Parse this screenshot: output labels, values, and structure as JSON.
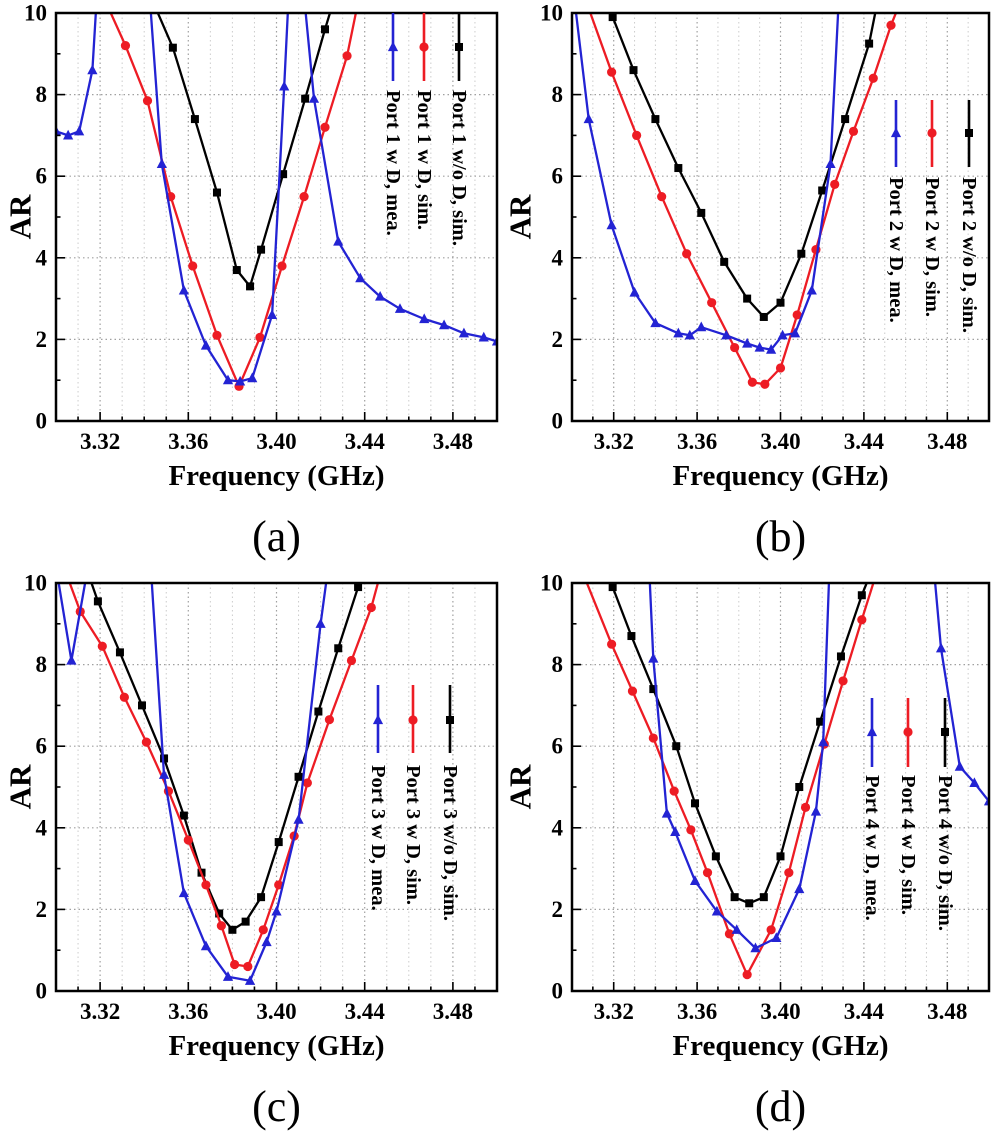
{
  "figure": {
    "background": "#ffffff",
    "colors": {
      "black": "#000000",
      "red": "#ed1c24",
      "blue": "#2323d3",
      "grid_major": "#a0a0a0",
      "grid_minor": "#cccccc",
      "axis": "#000000"
    }
  },
  "chart_data": [
    {
      "subplot_label": "(a)",
      "type": "line",
      "xlabel": "Frequency (GHz)",
      "ylabel": "AR",
      "xlim": [
        3.3,
        3.5
      ],
      "ylim": [
        0,
        10
      ],
      "x_tick_values": [
        3.32,
        3.36,
        3.4,
        3.44,
        3.48
      ],
      "x_tick_labels": [
        "3.32",
        "3.36",
        "3.40",
        "3.44",
        "3.48"
      ],
      "x_minor_step": 0.01,
      "y_tick_values": [
        0,
        2,
        4,
        6,
        8,
        10
      ],
      "y_tick_labels": [
        "0",
        "2",
        "4",
        "6",
        "8",
        "10"
      ],
      "y_minor_step": 1,
      "grid": "dotted",
      "legend_position": "top-right",
      "series": [
        {
          "name": "Port 1 w/o D, sim.",
          "color": "#000000",
          "marker": "square",
          "x": [
            3.343,
            3.353,
            3.363,
            3.373,
            3.382,
            3.388,
            3.393,
            3.403,
            3.413,
            3.422,
            3.4265
          ],
          "y": [
            10.4,
            9.15,
            7.4,
            5.6,
            3.7,
            3.3,
            4.2,
            6.05,
            7.9,
            9.6,
            10.4
          ]
        },
        {
          "name": "Port 1 w D, sim.",
          "color": "#ed1c24",
          "marker": "circle",
          "x": [
            3.3215,
            3.3315,
            3.3415,
            3.352,
            3.362,
            3.373,
            3.383,
            3.3925,
            3.4025,
            3.4125,
            3.422,
            3.432,
            3.4375
          ],
          "y": [
            10.4,
            9.2,
            7.85,
            5.5,
            3.8,
            2.1,
            0.85,
            2.05,
            3.8,
            5.5,
            7.2,
            8.95,
            10.4
          ]
        },
        {
          "name": "Port 1 w D, mea.",
          "color": "#2323d3",
          "marker": "triangle",
          "x": [
            3.3,
            3.3055,
            3.3105,
            3.3165,
            3.3185,
            3.3425,
            3.348,
            3.358,
            3.368,
            3.378,
            3.3835,
            3.389,
            3.398,
            3.4035,
            3.4055,
            3.4125,
            3.417,
            3.428,
            3.438,
            3.447,
            3.456,
            3.467,
            3.476,
            3.485,
            3.494,
            3.5
          ],
          "y": [
            7.1,
            7.0,
            7.1,
            8.6,
            10.4,
            10.4,
            6.3,
            3.2,
            1.85,
            1.0,
            0.97,
            1.05,
            2.6,
            8.2,
            10.4,
            10.4,
            7.9,
            4.4,
            3.5,
            3.05,
            2.75,
            2.5,
            2.35,
            2.15,
            2.05,
            1.95
          ]
        }
      ]
    },
    {
      "subplot_label": "(b)",
      "type": "line",
      "xlabel": "Frequency (GHz)",
      "ylabel": "AR",
      "xlim": [
        3.3,
        3.5
      ],
      "ylim": [
        0,
        10
      ],
      "x_tick_values": [
        3.32,
        3.36,
        3.4,
        3.44,
        3.48
      ],
      "x_tick_labels": [
        "3.32",
        "3.36",
        "3.40",
        "3.44",
        "3.48"
      ],
      "x_minor_step": 0.01,
      "y_tick_values": [
        0,
        2,
        4,
        6,
        8,
        10
      ],
      "y_tick_labels": [
        "0",
        "2",
        "4",
        "6",
        "8",
        "10"
      ],
      "y_minor_step": 1,
      "grid": "dotted",
      "legend_position": "middle-right",
      "series": [
        {
          "name": "Port 2 w/o D, sim.",
          "color": "#000000",
          "marker": "square",
          "x": [
            3.3165,
            3.3195,
            3.3295,
            3.34,
            3.351,
            3.362,
            3.373,
            3.384,
            3.392,
            3.4,
            3.41,
            3.42,
            3.431,
            3.4425,
            3.447
          ],
          "y": [
            10.4,
            9.9,
            8.6,
            7.4,
            6.2,
            5.1,
            3.9,
            3.0,
            2.55,
            2.9,
            4.1,
            5.65,
            7.4,
            9.25,
            10.4
          ]
        },
        {
          "name": "Port 2 w D, sim.",
          "color": "#ed1c24",
          "marker": "circle",
          "x": [
            3.306,
            3.319,
            3.331,
            3.343,
            3.355,
            3.367,
            3.378,
            3.3865,
            3.3925,
            3.4,
            3.408,
            3.417,
            3.426,
            3.435,
            3.4445,
            3.453,
            3.4585
          ],
          "y": [
            10.4,
            8.55,
            7.0,
            5.5,
            4.1,
            2.9,
            1.8,
            0.95,
            0.9,
            1.3,
            2.6,
            4.2,
            5.8,
            7.1,
            8.4,
            9.7,
            10.4
          ]
        },
        {
          "name": "Port 2 w D, mea.",
          "color": "#2323d3",
          "marker": "triangle",
          "x": [
            3.301,
            3.308,
            3.319,
            3.33,
            3.34,
            3.351,
            3.3565,
            3.362,
            3.374,
            3.384,
            3.39,
            3.3955,
            3.401,
            3.407,
            3.415,
            3.424,
            3.428
          ],
          "y": [
            10.4,
            7.4,
            4.8,
            3.15,
            2.4,
            2.15,
            2.1,
            2.3,
            2.1,
            1.9,
            1.8,
            1.75,
            2.1,
            2.15,
            3.2,
            6.3,
            10.4
          ]
        }
      ]
    },
    {
      "subplot_label": "(c)",
      "type": "line",
      "xlabel": "Frequency (GHz)",
      "ylabel": "AR",
      "xlim": [
        3.3,
        3.5
      ],
      "ylim": [
        0,
        10
      ],
      "x_tick_values": [
        3.32,
        3.36,
        3.4,
        3.44,
        3.48
      ],
      "x_tick_labels": [
        "3.32",
        "3.36",
        "3.40",
        "3.44",
        "3.48"
      ],
      "x_minor_step": 0.01,
      "y_tick_values": [
        0,
        2,
        4,
        6,
        8,
        10
      ],
      "y_tick_labels": [
        "0",
        "2",
        "4",
        "6",
        "8",
        "10"
      ],
      "y_minor_step": 1,
      "grid": "dotted",
      "legend_position": "middle-right",
      "series": [
        {
          "name": "Port 3 w/o D, sim.",
          "color": "#000000",
          "marker": "square",
          "x": [
            3.3135,
            3.319,
            3.329,
            3.339,
            3.349,
            3.358,
            3.366,
            3.374,
            3.38,
            3.386,
            3.393,
            3.401,
            3.41,
            3.419,
            3.428,
            3.437,
            3.442
          ],
          "y": [
            10.4,
            9.55,
            8.3,
            7.0,
            5.7,
            4.3,
            2.9,
            1.9,
            1.5,
            1.7,
            2.3,
            3.65,
            5.25,
            6.85,
            8.4,
            9.9,
            10.4
          ]
        },
        {
          "name": "Port 3 w D, sim.",
          "color": "#ed1c24",
          "marker": "circle",
          "x": [
            3.3035,
            3.311,
            3.321,
            3.331,
            3.341,
            3.351,
            3.36,
            3.368,
            3.375,
            3.381,
            3.387,
            3.394,
            3.401,
            3.408,
            3.414,
            3.424,
            3.434,
            3.443,
            3.448
          ],
          "y": [
            10.4,
            9.3,
            8.45,
            7.2,
            6.1,
            4.9,
            3.7,
            2.6,
            1.6,
            0.65,
            0.6,
            1.5,
            2.6,
            3.8,
            5.1,
            6.65,
            8.1,
            9.4,
            10.4
          ]
        },
        {
          "name": "Port 3 w D, mea.",
          "color": "#2323d3",
          "marker": "triangle",
          "x": [
            3.3,
            3.307,
            3.3145,
            3.343,
            3.349,
            3.358,
            3.368,
            3.378,
            3.388,
            3.3955,
            3.4,
            3.41,
            3.42,
            3.4235
          ],
          "y": [
            10.4,
            8.1,
            10.4,
            10.4,
            5.3,
            2.4,
            1.1,
            0.35,
            0.25,
            1.2,
            1.95,
            4.2,
            9.0,
            10.4
          ]
        }
      ]
    },
    {
      "subplot_label": "(d)",
      "type": "line",
      "xlabel": "Frequency (GHz)",
      "ylabel": "AR",
      "xlim": [
        3.3,
        3.5
      ],
      "ylim": [
        0,
        10
      ],
      "x_tick_values": [
        3.32,
        3.36,
        3.4,
        3.44,
        3.48
      ],
      "x_tick_labels": [
        "3.32",
        "3.36",
        "3.40",
        "3.44",
        "3.48"
      ],
      "x_minor_step": 0.01,
      "y_tick_values": [
        0,
        2,
        4,
        6,
        8,
        10
      ],
      "y_tick_labels": [
        "0",
        "2",
        "4",
        "6",
        "8",
        "10"
      ],
      "y_minor_step": 1,
      "grid": "dotted",
      "legend_position": "middle-right",
      "series": [
        {
          "name": "Port 4 w/o D, sim.",
          "color": "#000000",
          "marker": "square",
          "x": [
            3.316,
            3.3195,
            3.3285,
            3.339,
            3.35,
            3.359,
            3.369,
            3.378,
            3.385,
            3.392,
            3.4,
            3.409,
            3.419,
            3.429,
            3.439,
            3.4445
          ],
          "y": [
            10.4,
            9.9,
            8.7,
            7.4,
            6.0,
            4.6,
            3.3,
            2.3,
            2.15,
            2.3,
            3.3,
            5.0,
            6.6,
            8.2,
            9.7,
            10.4
          ]
        },
        {
          "name": "Port 4 w D, sim.",
          "color": "#ed1c24",
          "marker": "circle",
          "x": [
            3.304,
            3.319,
            3.329,
            3.339,
            3.349,
            3.357,
            3.365,
            3.3755,
            3.384,
            3.3955,
            3.404,
            3.412,
            3.421,
            3.43,
            3.439,
            3.447
          ],
          "y": [
            10.4,
            8.5,
            7.35,
            6.2,
            4.9,
            3.95,
            2.9,
            1.4,
            0.4,
            1.5,
            2.9,
            4.5,
            6.05,
            7.6,
            9.1,
            10.4
          ]
        },
        {
          "name": "Port 4 w D, mea.",
          "color": "#2323d3",
          "marker": "triangle",
          "x": [
            3.337,
            3.339,
            3.3455,
            3.3495,
            3.359,
            3.3695,
            3.379,
            3.388,
            3.398,
            3.409,
            3.417,
            3.4205,
            3.4235,
            3.4735,
            3.477,
            3.486,
            3.493,
            3.5
          ],
          "y": [
            10.4,
            8.15,
            4.35,
            3.9,
            2.7,
            1.95,
            1.5,
            1.05,
            1.3,
            2.5,
            4.4,
            6.1,
            10.4,
            10.4,
            8.4,
            5.5,
            5.1,
            4.65
          ]
        }
      ]
    }
  ]
}
